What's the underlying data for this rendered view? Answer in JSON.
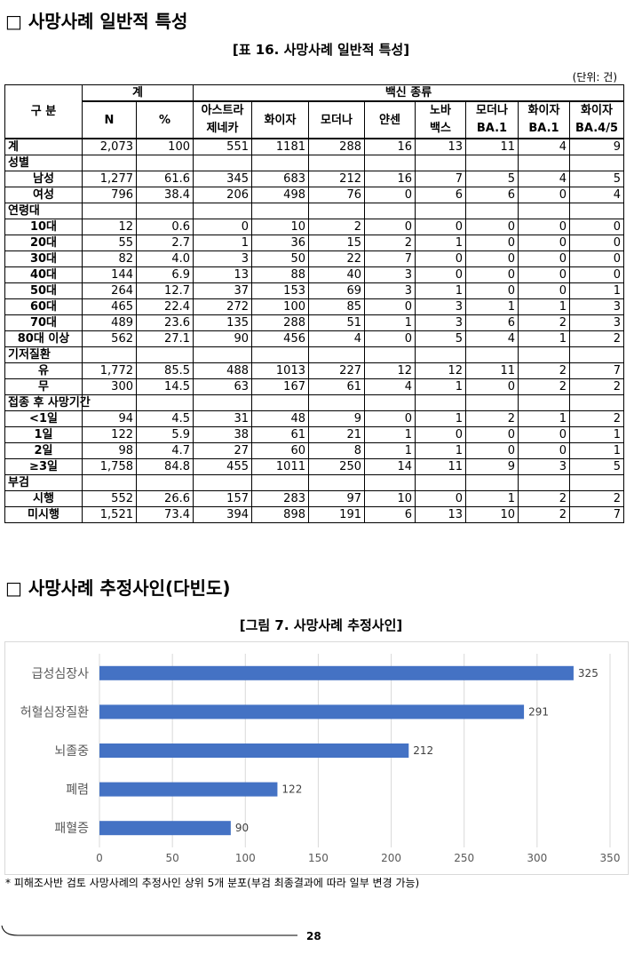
{
  "section1": {
    "heading": "□ 사망사례 일반적 특성"
  },
  "table": {
    "title": "[표 16. 사망사례 일반적 특성]",
    "unit": "(단위: 건)",
    "stub_header": "구 분",
    "group_headers": [
      "계",
      "백신 종류"
    ],
    "columns": [
      "N",
      "%",
      [
        "아스트라",
        "제네카"
      ],
      "화이자",
      "모더나",
      "얀센",
      [
        "노바",
        "백스"
      ],
      [
        "모더나",
        "BA.1"
      ],
      [
        "화이자",
        "BA.1"
      ],
      [
        "화이자",
        "BA.4/5"
      ]
    ],
    "rows": [
      {
        "label": "계",
        "cells": [
          "2,073",
          "100",
          "551",
          "1181",
          "288",
          "16",
          "13",
          "11",
          "4",
          "9"
        ]
      },
      {
        "label": "성별"
      },
      {
        "label": "남성",
        "cells": [
          "1,277",
          "61.6",
          "345",
          "683",
          "212",
          "16",
          "7",
          "5",
          "4",
          "5"
        ]
      },
      {
        "label": "여성",
        "cells": [
          "796",
          "38.4",
          "206",
          "498",
          "76",
          "0",
          "6",
          "6",
          "0",
          "4"
        ]
      },
      {
        "label": "연령대"
      },
      {
        "label": "10대",
        "cells": [
          "12",
          "0.6",
          "0",
          "10",
          "2",
          "0",
          "0",
          "0",
          "0",
          "0"
        ]
      },
      {
        "label": "20대",
        "cells": [
          "55",
          "2.7",
          "1",
          "36",
          "15",
          "2",
          "1",
          "0",
          "0",
          "0"
        ]
      },
      {
        "label": "30대",
        "cells": [
          "82",
          "4.0",
          "3",
          "50",
          "22",
          "7",
          "0",
          "0",
          "0",
          "0"
        ]
      },
      {
        "label": "40대",
        "cells": [
          "144",
          "6.9",
          "13",
          "88",
          "40",
          "3",
          "0",
          "0",
          "0",
          "0"
        ]
      },
      {
        "label": "50대",
        "cells": [
          "264",
          "12.7",
          "37",
          "153",
          "69",
          "3",
          "1",
          "0",
          "0",
          "1"
        ]
      },
      {
        "label": "60대",
        "cells": [
          "465",
          "22.4",
          "272",
          "100",
          "85",
          "0",
          "3",
          "1",
          "1",
          "3"
        ]
      },
      {
        "label": "70대",
        "cells": [
          "489",
          "23.6",
          "135",
          "288",
          "51",
          "1",
          "3",
          "6",
          "2",
          "3"
        ]
      },
      {
        "label": "80대 이상",
        "cells": [
          "562",
          "27.1",
          "90",
          "456",
          "4",
          "0",
          "5",
          "4",
          "1",
          "2"
        ]
      },
      {
        "label": "기저질환"
      },
      {
        "label": "유",
        "cells": [
          "1,772",
          "85.5",
          "488",
          "1013",
          "227",
          "12",
          "12",
          "11",
          "2",
          "7"
        ]
      },
      {
        "label": "무",
        "cells": [
          "300",
          "14.5",
          "63",
          "167",
          "61",
          "4",
          "1",
          "0",
          "2",
          "2"
        ]
      },
      {
        "label": "접종 후 사망기간"
      },
      {
        "label": "<1일",
        "cells": [
          "94",
          "4.5",
          "31",
          "48",
          "9",
          "0",
          "1",
          "2",
          "1",
          "2"
        ]
      },
      {
        "label": "1일",
        "cells": [
          "122",
          "5.9",
          "38",
          "61",
          "21",
          "1",
          "0",
          "0",
          "0",
          "1"
        ]
      },
      {
        "label": "2일",
        "cells": [
          "98",
          "4.7",
          "27",
          "60",
          "8",
          "1",
          "1",
          "0",
          "0",
          "1"
        ]
      },
      {
        "label": "≥3일",
        "cells": [
          "1,758",
          "84.8",
          "455",
          "1011",
          "250",
          "14",
          "11",
          "9",
          "3",
          "5"
        ]
      },
      {
        "label": "부검"
      },
      {
        "label": "시행",
        "cells": [
          "552",
          "26.6",
          "157",
          "283",
          "97",
          "10",
          "0",
          "1",
          "2",
          "2"
        ]
      },
      {
        "label": "미시행",
        "cells": [
          "1,521",
          "73.4",
          "394",
          "898",
          "191",
          "6",
          "13",
          "10",
          "2",
          "7"
        ]
      }
    ]
  },
  "section2": {
    "heading": "□ 사망사례 추정사인(다빈도)",
    "figure_title": "[그림 7. 사망사례 추정사인]"
  },
  "chart_data": {
    "type": "hbar",
    "categories": [
      "급성심장사",
      "허혈심장질환",
      "뇌졸중",
      "폐렴",
      "패혈증"
    ],
    "values": [
      325,
      291,
      212,
      122,
      90
    ],
    "color": "#4472c4",
    "xlim": [
      0,
      350
    ],
    "xticks": [
      0,
      50,
      100,
      150,
      200,
      250,
      300,
      350
    ],
    "grid": true
  },
  "footnote": "* 피해조사반 검토 사망사례의 추정사인 상위 5개 분포(부검 최종결과에 따라 일부 변경 가능)",
  "page_number": "28"
}
